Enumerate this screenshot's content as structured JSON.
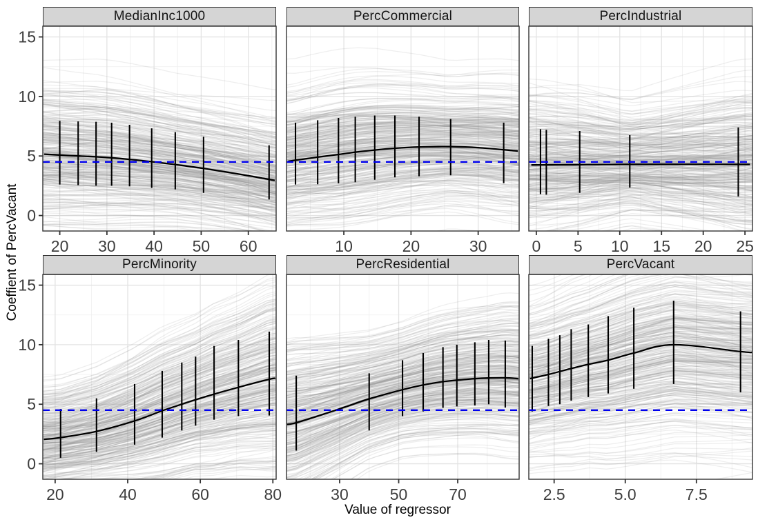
{
  "chart_data": {
    "type": "line",
    "description": "Faceted plot of bootstrap/ensemble regression fits: gray ensemble curves, black mean curve with vertical interval bars, blue dashed horizontal reference line",
    "xlabel": "Value of regressor",
    "ylabel": "Coeffient of PercVacant",
    "y_domain": [
      -1.3,
      15.9
    ],
    "y_ticks": [
      [
        0,
        "0"
      ],
      [
        5,
        "5"
      ],
      [
        10,
        "10"
      ],
      [
        15,
        "15"
      ]
    ],
    "grid": "major-and-minor",
    "reference_line": {
      "y": 4.5,
      "color": "#0000ee",
      "style": "dashed"
    },
    "panels": [
      {
        "title": "MedianInc1000",
        "x_domain": [
          16.4,
          65.9
        ],
        "x_ticks": [
          [
            20,
            "20"
          ],
          [
            30,
            "30"
          ],
          [
            40,
            "40"
          ],
          [
            50,
            "50"
          ],
          [
            60,
            "60"
          ]
        ],
        "mean_line": [
          [
            16.7,
            5.15
          ],
          [
            20,
            5.08
          ],
          [
            23.9,
            5.0
          ],
          [
            27.7,
            4.93
          ],
          [
            31,
            4.85
          ],
          [
            34.8,
            4.72
          ],
          [
            39.5,
            4.52
          ],
          [
            44.5,
            4.28
          ],
          [
            50.5,
            3.95
          ],
          [
            58,
            3.48
          ],
          [
            65.6,
            2.95
          ]
        ],
        "error_bars": [
          [
            20,
            2.6,
            7.95
          ],
          [
            23.9,
            2.55,
            7.9
          ],
          [
            27.7,
            2.5,
            7.87
          ],
          [
            31,
            2.5,
            7.8
          ],
          [
            34.8,
            2.45,
            7.62
          ],
          [
            39.5,
            2.32,
            7.32
          ],
          [
            44.5,
            2.2,
            7.0
          ],
          [
            50.5,
            1.9,
            6.62
          ],
          [
            64.4,
            1.35,
            5.9
          ]
        ],
        "ensemble": {
          "count": 330,
          "seed": 11,
          "sd_offset": 0.5,
          "sd_slope": 0.9,
          "outliers": 4
        }
      },
      {
        "title": "PercCommercial",
        "x_domain": [
          1.46,
          36.1
        ],
        "x_ticks": [
          [
            10,
            "10"
          ],
          [
            20,
            "20"
          ],
          [
            30,
            "30"
          ]
        ],
        "mean_line": [
          [
            1.7,
            4.55
          ],
          [
            2.8,
            4.65
          ],
          [
            6.1,
            4.9
          ],
          [
            9.2,
            5.13
          ],
          [
            11.7,
            5.32
          ],
          [
            14.6,
            5.5
          ],
          [
            17.6,
            5.65
          ],
          [
            21.2,
            5.76
          ],
          [
            25.9,
            5.78
          ],
          [
            30,
            5.7
          ],
          [
            35.9,
            5.42
          ]
        ],
        "error_bars": [
          [
            2.8,
            2.6,
            7.8
          ],
          [
            6.1,
            2.62,
            8.0
          ],
          [
            9.2,
            2.7,
            8.2
          ],
          [
            11.7,
            2.8,
            8.3
          ],
          [
            14.6,
            3.0,
            8.4
          ],
          [
            17.6,
            3.2,
            8.4
          ],
          [
            21.2,
            3.3,
            8.3
          ],
          [
            25.9,
            3.38,
            8.1
          ],
          [
            33.8,
            2.72,
            7.8
          ]
        ],
        "ensemble": {
          "count": 330,
          "seed": 22,
          "sd_offset": 0.5,
          "sd_slope": 0.85,
          "outliers": 3
        }
      },
      {
        "title": "PercIndustrial",
        "x_domain": [
          -0.9,
          25.9
        ],
        "x_ticks": [
          [
            0,
            "0"
          ],
          [
            5,
            "5"
          ],
          [
            10,
            "10"
          ],
          [
            15,
            "15"
          ],
          [
            20,
            "20"
          ],
          [
            25,
            "25"
          ]
        ],
        "mean_line": [
          [
            -0.6,
            4.25
          ],
          [
            5,
            4.27
          ],
          [
            12,
            4.3
          ],
          [
            25.6,
            4.3
          ]
        ],
        "error_bars": [
          [
            0.5,
            1.8,
            7.25
          ],
          [
            1.2,
            1.75,
            7.2
          ],
          [
            5.2,
            1.9,
            7.1
          ],
          [
            11.2,
            2.35,
            6.75
          ],
          [
            24.2,
            1.6,
            7.4
          ]
        ],
        "ensemble": {
          "count": 330,
          "seed": 33,
          "sd_offset": 0.5,
          "sd_slope": 1.7,
          "outliers": 3
        }
      },
      {
        "title": "PercMinority",
        "x_domain": [
          16.6,
          80.9
        ],
        "x_ticks": [
          [
            20,
            "20"
          ],
          [
            40,
            "40"
          ],
          [
            60,
            "60"
          ],
          [
            80,
            "80"
          ]
        ],
        "mean_line": [
          [
            16.9,
            2.05
          ],
          [
            21.5,
            2.2
          ],
          [
            31.4,
            2.72
          ],
          [
            41.9,
            3.6
          ],
          [
            49.5,
            4.45
          ],
          [
            54.9,
            5.0
          ],
          [
            58.7,
            5.38
          ],
          [
            63.8,
            5.85
          ],
          [
            70.5,
            6.42
          ],
          [
            79,
            7.1
          ],
          [
            80.7,
            7.18
          ]
        ],
        "error_bars": [
          [
            21.5,
            0.5,
            4.6
          ],
          [
            31.4,
            1.0,
            5.5
          ],
          [
            41.9,
            1.6,
            6.7
          ],
          [
            49.5,
            2.2,
            7.8
          ],
          [
            54.9,
            2.8,
            8.5
          ],
          [
            58.7,
            3.2,
            9.0
          ],
          [
            63.8,
            3.7,
            9.9
          ],
          [
            70.5,
            4.0,
            10.4
          ],
          [
            79,
            4.05,
            11.1
          ]
        ],
        "ensemble": {
          "count": 330,
          "seed": 44,
          "sd_offset": 0.5,
          "sd_slope": 0.9,
          "outliers": 4
        }
      },
      {
        "title": "PercResidential",
        "x_domain": [
          12.0,
          90.8
        ],
        "x_ticks": [
          [
            30,
            "30"
          ],
          [
            50,
            "50"
          ],
          [
            70,
            "70"
          ]
        ],
        "mean_line": [
          [
            12.2,
            3.3
          ],
          [
            15.3,
            3.45
          ],
          [
            25,
            4.2
          ],
          [
            32,
            4.78
          ],
          [
            40,
            5.45
          ],
          [
            51.3,
            6.22
          ],
          [
            58.3,
            6.62
          ],
          [
            65,
            6.9
          ],
          [
            69.7,
            7.02
          ],
          [
            75.8,
            7.15
          ],
          [
            80.5,
            7.2
          ],
          [
            86.1,
            7.22
          ],
          [
            90.5,
            7.15
          ]
        ],
        "error_bars": [
          [
            15.3,
            1.1,
            7.4
          ],
          [
            40,
            2.8,
            7.6
          ],
          [
            51.3,
            4.0,
            8.7
          ],
          [
            58.3,
            4.4,
            9.3
          ],
          [
            65,
            4.7,
            9.8
          ],
          [
            69.7,
            4.82,
            10.0
          ],
          [
            75.8,
            4.9,
            10.2
          ],
          [
            80.5,
            5.0,
            10.4
          ],
          [
            86.1,
            4.72,
            10.35
          ]
        ],
        "ensemble": {
          "count": 330,
          "seed": 55,
          "sd_offset": 0.5,
          "sd_slope": 0.8,
          "outliers": 4
        }
      },
      {
        "title": "PercVacant",
        "x_domain": [
          1.61,
          9.47
        ],
        "x_ticks": [
          [
            2.5,
            "2.5"
          ],
          [
            5,
            "5.0"
          ],
          [
            7.5,
            "7.5"
          ]
        ],
        "mean_line": [
          [
            1.65,
            7.15
          ],
          [
            2.3,
            7.5
          ],
          [
            2.7,
            7.75
          ],
          [
            3.1,
            8.0
          ],
          [
            3.7,
            8.35
          ],
          [
            4.4,
            8.7
          ],
          [
            5.3,
            9.3
          ],
          [
            6.7,
            10.0
          ],
          [
            9.05,
            9.42
          ],
          [
            9.45,
            9.35
          ]
        ],
        "error_bars": [
          [
            1.73,
            4.4,
            9.9
          ],
          [
            2.3,
            4.85,
            10.5
          ],
          [
            2.7,
            5.0,
            10.8
          ],
          [
            3.1,
            5.3,
            11.3
          ],
          [
            3.7,
            5.6,
            11.7
          ],
          [
            4.4,
            5.9,
            12.4
          ],
          [
            5.3,
            6.3,
            13.1
          ],
          [
            6.7,
            6.7,
            13.7
          ],
          [
            9.05,
            6.0,
            12.8
          ]
        ],
        "ensemble": {
          "count": 330,
          "seed": 66,
          "sd_offset": 0.5,
          "sd_slope": 0.8,
          "outliers": 5
        }
      }
    ],
    "style": {
      "panel_border": "#333333",
      "strip_bg": "#d5d5d5",
      "grid_major": "#e3e3e3",
      "grid_minor": "#f0f0f0",
      "ensemble_color": "#878787",
      "mean_color": "#000000",
      "tick_color": "#333333",
      "tick_label_color": "#3d3d3d"
    }
  }
}
